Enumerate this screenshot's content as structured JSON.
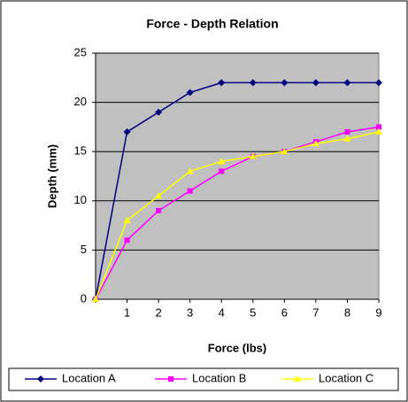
{
  "chart_data": {
    "type": "line",
    "title": "Force - Depth Relation",
    "x_label": "Force (lbs)",
    "y_label": "Depth (mm)",
    "categories": [
      null,
      "1",
      "2",
      "3",
      "4",
      "5",
      "6",
      "7",
      "8",
      "9"
    ],
    "series": [
      {
        "name": "Location A",
        "color": "#000080",
        "marker": "diamond",
        "values": [
          0,
          17,
          19,
          21,
          22,
          22,
          22,
          22,
          22,
          22
        ]
      },
      {
        "name": "Location B",
        "color": "#ff00ff",
        "marker": "square",
        "values": [
          0,
          6,
          9,
          11,
          13,
          14.5,
          15,
          16,
          17,
          17.5
        ]
      },
      {
        "name": "Location C",
        "color": "#ffff00",
        "marker": "triangle",
        "values": [
          0,
          8,
          10.5,
          13,
          14,
          14.5,
          15,
          15.8,
          16.3,
          17
        ]
      }
    ],
    "ylim": [
      0,
      25
    ],
    "yticks": [
      0,
      5,
      10,
      15,
      20,
      25
    ],
    "grid": true,
    "legend": "bottom"
  }
}
